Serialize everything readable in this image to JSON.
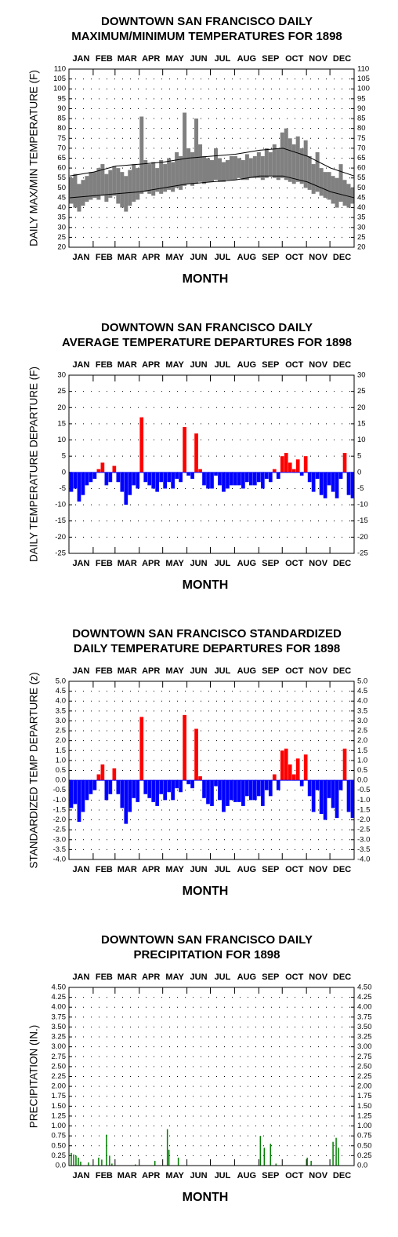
{
  "chart_data": [
    {
      "type": "range",
      "title": [
        "DOWNTOWN SAN FRANCISCO DAILY",
        "MAXIMUM/MINIMUM TEMPERATURES FOR 1898"
      ],
      "x_label": "MONTH",
      "y_label": "DAILY MAX/MIN TEMPERATURE (F)",
      "categories": [
        "JAN",
        "FEB",
        "MAR",
        "APR",
        "MAY",
        "JUN",
        "JUL",
        "AUG",
        "SEP",
        "OCT",
        "NOV",
        "DEC"
      ],
      "x": [
        3,
        8,
        13,
        18,
        23,
        28,
        33,
        38,
        43,
        48,
        53,
        58,
        63,
        68,
        73,
        78,
        83,
        88,
        93,
        98,
        103,
        108,
        113,
        118,
        123,
        128,
        133,
        138,
        143,
        148,
        153,
        158,
        163,
        168,
        173,
        178,
        183,
        188,
        193,
        198,
        203,
        208,
        213,
        218,
        223,
        228,
        233,
        238,
        243,
        248,
        253,
        258,
        263,
        268,
        273,
        278,
        283,
        288,
        293,
        298,
        303,
        308,
        313,
        318,
        323,
        328,
        333,
        338,
        343,
        348,
        353,
        358,
        363
      ],
      "xlim": [
        0,
        365
      ],
      "series": [
        {
          "color": "#808080",
          "values": [
            55,
            57,
            52,
            54,
            56,
            58,
            58,
            60,
            62,
            57,
            59,
            61,
            60,
            58,
            56,
            59,
            62,
            60,
            86,
            64,
            62,
            63,
            60,
            64,
            62,
            65,
            63,
            68,
            66,
            88,
            70,
            68,
            85,
            72,
            66,
            65,
            64,
            70,
            65,
            63,
            64,
            66,
            66,
            65,
            64,
            67,
            65,
            66,
            68,
            66,
            70,
            68,
            72,
            70,
            78,
            80,
            75,
            72,
            76,
            70,
            74,
            66,
            62,
            68,
            60,
            58,
            58,
            56,
            55,
            62,
            54,
            52,
            50
          ]
        },
        {
          "color": "#808080",
          "values": [
            42,
            40,
            38,
            41,
            43,
            44,
            45,
            44,
            46,
            43,
            45,
            46,
            42,
            40,
            38,
            41,
            43,
            44,
            47,
            48,
            47,
            46,
            48,
            47,
            48,
            49,
            48,
            50,
            49,
            51,
            52,
            51,
            52,
            53,
            52,
            53,
            53,
            54,
            53,
            53,
            54,
            54,
            54,
            55,
            54,
            54,
            55,
            55,
            55,
            54,
            55,
            56,
            55,
            54,
            55,
            54,
            53,
            52,
            53,
            52,
            50,
            49,
            47,
            48,
            46,
            45,
            44,
            42,
            40,
            43,
            41,
            40,
            42
          ]
        },
        {
          "color": "#000000",
          "x": [
            1,
            32,
            60,
            91,
            121,
            152,
            182,
            213,
            244,
            274,
            305,
            335,
            365
          ],
          "values": [
            56,
            58,
            61,
            62,
            63,
            65,
            66,
            67,
            69,
            70,
            66,
            60,
            56
          ]
        },
        {
          "color": "#000000",
          "x": [
            1,
            32,
            60,
            91,
            121,
            152,
            182,
            213,
            244,
            274,
            305,
            335,
            365
          ],
          "values": [
            45,
            46,
            47,
            48,
            50,
            52,
            53,
            54,
            56,
            56,
            53,
            48,
            45
          ]
        }
      ],
      "ylim": [
        20,
        110
      ],
      "yticks": [
        110,
        105,
        100,
        95,
        90,
        85,
        80,
        75,
        70,
        65,
        60,
        55,
        50,
        45,
        40,
        35,
        30,
        25,
        20
      ],
      "grid": true
    },
    {
      "type": "bar",
      "title": [
        "DOWNTOWN SAN FRANCISCO DAILY",
        "AVERAGE TEMPERATURE DEPARTURES FOR 1898"
      ],
      "x_label": "MONTH",
      "y_label": "DAILY TEMPERATURE DEPARTURE (F)",
      "categories": [
        "JAN",
        "FEB",
        "MAR",
        "APR",
        "MAY",
        "JUN",
        "JUL",
        "AUG",
        "SEP",
        "OCT",
        "NOV",
        "DEC"
      ],
      "x": [
        3,
        8,
        13,
        18,
        23,
        28,
        33,
        38,
        43,
        48,
        53,
        58,
        63,
        68,
        73,
        78,
        83,
        88,
        93,
        98,
        103,
        108,
        113,
        118,
        123,
        128,
        133,
        138,
        143,
        148,
        153,
        158,
        163,
        168,
        173,
        178,
        183,
        188,
        193,
        198,
        203,
        208,
        213,
        218,
        223,
        228,
        233,
        238,
        243,
        248,
        253,
        258,
        263,
        268,
        273,
        278,
        283,
        288,
        293,
        298,
        303,
        308,
        313,
        318,
        323,
        328,
        333,
        338,
        343,
        348,
        353,
        358,
        363
      ],
      "xlim": [
        0,
        365
      ],
      "values": [
        -6,
        -5,
        -9,
        -7,
        -4,
        -3,
        -2,
        1,
        3,
        -4,
        -3,
        2,
        -3,
        -6,
        -10,
        -7,
        -4,
        -5,
        17,
        -3,
        -4,
        -5,
        -6,
        -3,
        -5,
        -3,
        -5,
        -2,
        -3,
        14,
        -1,
        -2,
        12,
        1,
        -4,
        -5,
        -5,
        -1,
        -4,
        -6,
        -5,
        -4,
        -4,
        -4,
        -5,
        -3,
        -4,
        -4,
        -3,
        -5,
        -2,
        -3,
        1,
        -2,
        5,
        6,
        3,
        1,
        4,
        -1,
        5,
        -3,
        -6,
        -2,
        -7,
        -8,
        -4,
        -6,
        -8,
        -2,
        6,
        -7,
        -8
      ],
      "positive_color": "#ff0000",
      "negative_color": "#0000ff",
      "ylim": [
        -25,
        30
      ],
      "yticks": [
        30,
        25,
        20,
        15,
        10,
        5,
        0,
        -5,
        -10,
        -15,
        -20,
        -25
      ],
      "grid": true
    },
    {
      "type": "bar",
      "title": [
        "DOWNTOWN SAN FRANCISCO STANDARDIZED",
        "DAILY TEMPERATURE DEPARTURES FOR 1898"
      ],
      "x_label": "MONTH",
      "y_label": "STANDARDIZED TEMP DEPARTURE (z)",
      "categories": [
        "JAN",
        "FEB",
        "MAR",
        "APR",
        "MAY",
        "JUN",
        "JUL",
        "AUG",
        "SEP",
        "OCT",
        "NOV",
        "DEC"
      ],
      "x": [
        3,
        8,
        13,
        18,
        23,
        28,
        33,
        38,
        43,
        48,
        53,
        58,
        63,
        68,
        73,
        78,
        83,
        88,
        93,
        98,
        103,
        108,
        113,
        118,
        123,
        128,
        133,
        138,
        143,
        148,
        153,
        158,
        163,
        168,
        173,
        178,
        183,
        188,
        193,
        198,
        203,
        208,
        213,
        218,
        223,
        228,
        233,
        238,
        243,
        248,
        253,
        258,
        263,
        268,
        273,
        278,
        283,
        288,
        293,
        298,
        303,
        308,
        313,
        318,
        323,
        328,
        333,
        338,
        343,
        348,
        353,
        358,
        363
      ],
      "xlim": [
        0,
        365
      ],
      "values": [
        -1.4,
        -1.2,
        -2.1,
        -1.6,
        -1.0,
        -0.7,
        -0.5,
        0.3,
        0.8,
        -1.0,
        -0.7,
        0.6,
        -0.7,
        -1.4,
        -2.2,
        -1.6,
        -0.9,
        -1.1,
        3.2,
        -0.7,
        -0.9,
        -1.1,
        -1.3,
        -0.7,
        -1.0,
        -0.6,
        -1.0,
        -0.4,
        -0.6,
        3.3,
        -0.2,
        -0.4,
        2.6,
        0.2,
        -0.9,
        -1.2,
        -1.3,
        -0.3,
        -1.0,
        -1.6,
        -1.3,
        -1.0,
        -1.1,
        -1.1,
        -1.3,
        -0.8,
        -1.0,
        -1.0,
        -0.8,
        -1.3,
        -0.5,
        -0.8,
        0.3,
        -0.5,
        1.5,
        1.6,
        0.8,
        0.3,
        1.1,
        -0.3,
        1.3,
        -0.8,
        -1.6,
        -0.5,
        -1.7,
        -2.0,
        -0.9,
        -1.4,
        -1.9,
        -0.5,
        1.6,
        -1.6,
        -1.9
      ],
      "positive_color": "#ff0000",
      "negative_color": "#0000ff",
      "ylim": [
        -4,
        5
      ],
      "yticks": [
        {
          "value": 5,
          "label": "5.0"
        },
        {
          "value": 4.5,
          "label": "4.5"
        },
        {
          "value": 4,
          "label": "4.0"
        },
        {
          "value": 3.5,
          "label": "3.5"
        },
        {
          "value": 3,
          "label": "3.0"
        },
        {
          "value": 2.5,
          "label": "2.5"
        },
        {
          "value": 2,
          "label": "2.0"
        },
        {
          "value": 1.5,
          "label": "1.5"
        },
        {
          "value": 1,
          "label": "1.0"
        },
        {
          "value": 0.5,
          "label": "0.5"
        },
        {
          "value": 0,
          "label": "0.0"
        },
        {
          "value": -0.5,
          "label": "-0.5"
        },
        {
          "value": -1,
          "label": "-1.0"
        },
        {
          "value": -1.5,
          "label": "-1.5"
        },
        {
          "value": -2,
          "label": "-2.0"
        },
        {
          "value": -2.5,
          "label": "-2.5"
        },
        {
          "value": -3,
          "label": "-3.0"
        },
        {
          "value": -3.5,
          "label": "-3.5"
        },
        {
          "value": -4,
          "label": "-4.0"
        }
      ],
      "grid": true
    },
    {
      "type": "bar",
      "title": [
        "DOWNTOWN SAN FRANCISCO DAILY",
        "PRECIPITATION FOR 1898"
      ],
      "x_label": "MONTH",
      "y_label": "PRECIPITATION (IN.)",
      "categories": [
        "JAN",
        "FEB",
        "MAR",
        "APR",
        "MAY",
        "JUN",
        "JUL",
        "AUG",
        "SEP",
        "OCT",
        "NOV",
        "DEC"
      ],
      "x": [
        3,
        6,
        9,
        12,
        15,
        25,
        38,
        42,
        48,
        52,
        55,
        85,
        110,
        126,
        128,
        140,
        245,
        250,
        258,
        265,
        305,
        310,
        338,
        342,
        345
      ],
      "xlim": [
        0,
        365
      ],
      "values": [
        0.32,
        0.28,
        0.25,
        0.2,
        0.1,
        0.08,
        0.2,
        0.15,
        0.78,
        0.25,
        0.05,
        0.03,
        0.12,
        0.92,
        0.4,
        0.2,
        0.75,
        0.45,
        0.55,
        0.05,
        0.2,
        0.12,
        0.6,
        0.7,
        0.45
      ],
      "color": "#008000",
      "ylim": [
        0,
        4.5
      ],
      "yticks": [
        {
          "value": 4.5,
          "label": "4.50"
        },
        {
          "value": 4.25,
          "label": "4.25"
        },
        {
          "value": 4,
          "label": "4.00"
        },
        {
          "value": 3.75,
          "label": "3.75"
        },
        {
          "value": 3.5,
          "label": "3.50"
        },
        {
          "value": 3.25,
          "label": "3.25"
        },
        {
          "value": 3,
          "label": "3.00"
        },
        {
          "value": 2.75,
          "label": "2.75"
        },
        {
          "value": 2.5,
          "label": "2.50"
        },
        {
          "value": 2.25,
          "label": "2.25"
        },
        {
          "value": 2,
          "label": "2.00"
        },
        {
          "value": 1.75,
          "label": "1.75"
        },
        {
          "value": 1.5,
          "label": "1.50"
        },
        {
          "value": 1.25,
          "label": "1.25"
        },
        {
          "value": 1,
          "label": "1.00"
        },
        {
          "value": 0.75,
          "label": "0.75"
        },
        {
          "value": 0.5,
          "label": "0.50"
        },
        {
          "value": 0.25,
          "label": "0.25"
        },
        {
          "value": 0,
          "label": "0.0"
        }
      ],
      "grid": true
    }
  ]
}
